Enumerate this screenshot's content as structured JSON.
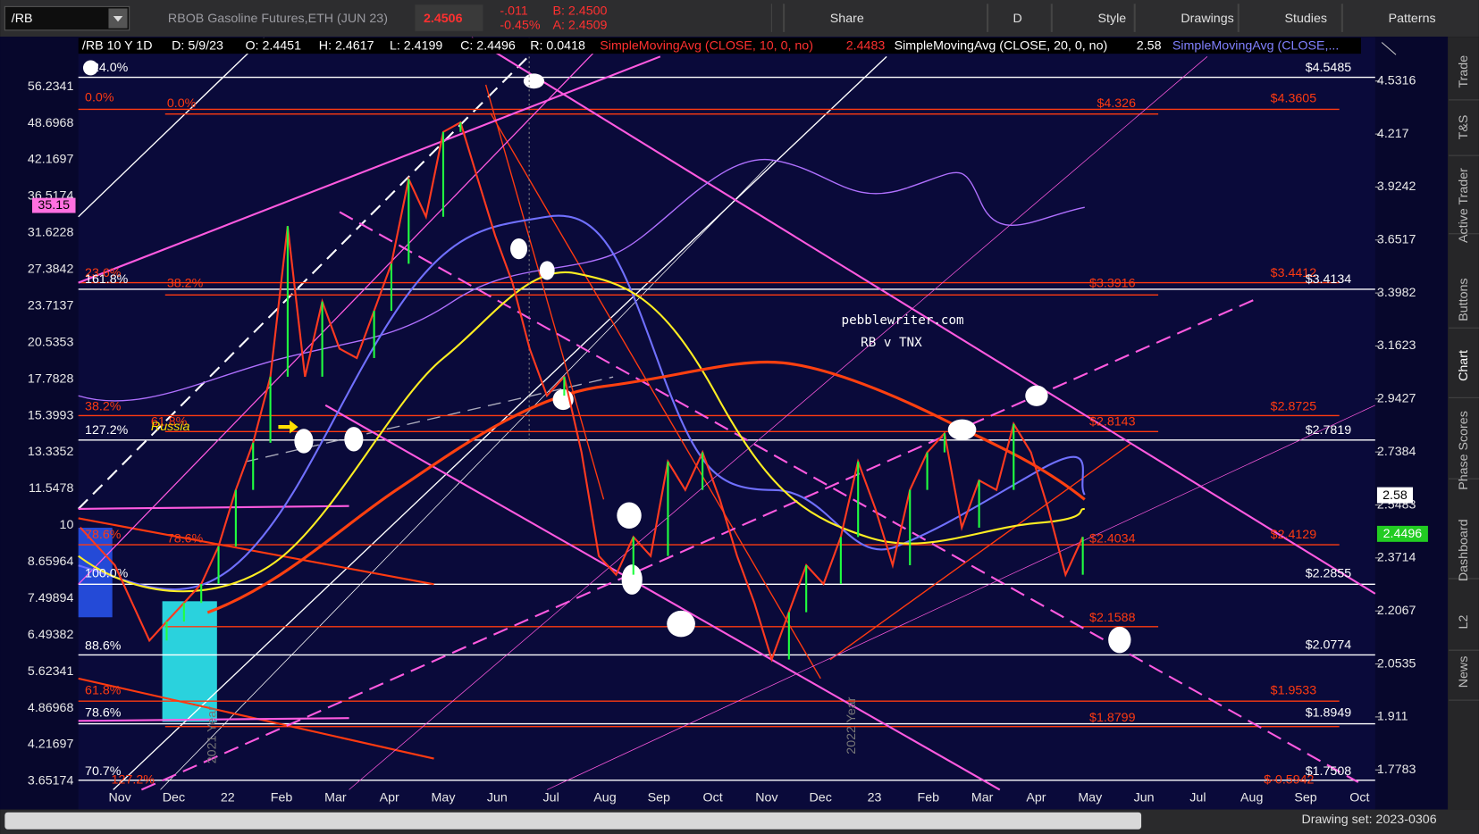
{
  "toolbar": {
    "symbol": "/RB",
    "description": "RBOB Gasoline Futures,ETH (JUN 23)",
    "last": "2.4506",
    "change": "-.011",
    "change_pct": "-0.45%",
    "bid": "B: 2.4500",
    "ask": "A: 2.4509",
    "buttons": [
      "Share",
      "D",
      "Style",
      "Drawings",
      "Studies",
      "Patterns"
    ]
  },
  "chart_header": [
    "/RB 10 Y 1D",
    "D: 5/9/23",
    "O: 2.4451",
    "H: 2.4617",
    "L: 2.4199",
    "C: 2.4496",
    "R: 0.0418",
    "SimpleMovingAvg (CLOSE, 10, 0, no)",
    "2.4483",
    "SimpleMovingAvg (CLOSE, 20, 0, no)",
    "2.58",
    "SimpleMovingAvg (CLOSE,..."
  ],
  "left_axis": [
    "56.2341",
    "48.6968",
    "42.1697",
    "36.5174",
    "31.6228",
    "27.3842",
    "23.7137",
    "20.5353",
    "17.7828",
    "15.3993",
    "13.3352",
    "11.5478",
    "10",
    "8.65964",
    "7.49894",
    "6.49382",
    "5.62341",
    "4.86968",
    "4.21697",
    "3.65174"
  ],
  "right_axis": [
    "4.5316",
    "4.217",
    "3.9242",
    "3.6517",
    "3.3982",
    "3.1623",
    "2.9427",
    "2.7384",
    "2.5483",
    "2.3714",
    "2.2067",
    "2.0535",
    "1.911",
    "1.7783"
  ],
  "markers": {
    "left": "35.15",
    "sma20": "2.58",
    "price": "2.4496"
  },
  "x_axis": [
    "Nov",
    "Dec",
    "22",
    "Feb",
    "Mar",
    "Apr",
    "May",
    "Jun",
    "Jul",
    "Aug",
    "Sep",
    "Oct",
    "Nov",
    "Dec",
    "23",
    "Feb",
    "Mar",
    "Apr",
    "May",
    "Jun",
    "Jul",
    "Aug",
    "Sep",
    "Oct"
  ],
  "right_levels": [
    "$4.5485",
    "$4.3605",
    "$4.326",
    "$3.4412",
    "$3.4134",
    "$3.3916",
    "$2.8725",
    "$2.8143",
    "$2.7819",
    "$2.4129",
    "$2.4034",
    "$2.2855",
    "$2.1588",
    "$2.0774",
    "$1.9533",
    "$1.8949",
    "$1.8799",
    "$1.7508",
    "$-0.5942"
  ],
  "left_levels": [
    "224.0%",
    "0.0%",
    "0.0%",
    "23.6%",
    "161.8%",
    "38.2%",
    "38.2%",
    "61.8%",
    "127.2%",
    "78.6%",
    "78.6%",
    "100.0%",
    "88.6%",
    "61.8%",
    "78.6%",
    "70.7%",
    "127.2%"
  ],
  "annotation": "Russia",
  "watermark": {
    "site": "pebblewriter.com",
    "subtitle": "RB v TNX"
  },
  "year_labels": [
    "2021 Year",
    "2022 Year"
  ],
  "side_tabs": [
    "Trade",
    "T&S",
    "Active Trader",
    "Buttons",
    "Chart",
    "Phase Scores",
    "Dashboard",
    "L2",
    "News"
  ],
  "status": "Drawing set: 2023-0306",
  "price_series": [
    2.4716,
    2.409,
    2.348,
    2.231,
    2.12,
    2.175,
    2.231,
    2.289,
    2.409,
    2.601,
    2.773,
    3.033,
    3.721,
    3.033,
    3.359,
    3.151,
    3.111,
    3.317,
    3.536,
    3.967,
    3.769,
    4.229,
    4.284,
    3.967,
    3.674,
    3.447,
    3.151,
    2.956,
    3.033,
    2.737,
    2.378,
    2.318,
    2.44,
    2.378,
    2.703,
    2.601,
    2.737,
    2.568,
    2.378,
    2.231,
    2.066,
    2.203,
    2.348,
    2.289,
    2.44,
    2.703,
    2.535,
    2.348,
    2.601,
    2.737,
    2.809,
    2.471,
    2.635,
    2.601,
    2.845,
    2.737,
    2.535,
    2.318,
    2.44
  ]
}
